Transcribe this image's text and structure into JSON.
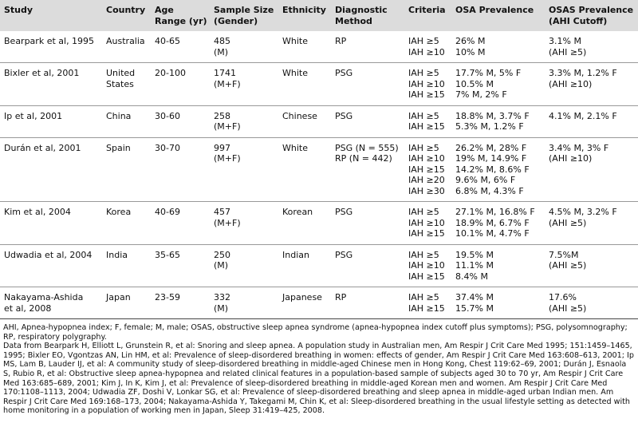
{
  "table": {
    "header": [
      [
        "Study"
      ],
      [
        "Country"
      ],
      [
        "Age",
        "Range (yr)"
      ],
      [
        "Sample Size",
        "(Gender)"
      ],
      [
        "Ethnicity"
      ],
      [
        "Diagnostic",
        "Method"
      ],
      [
        "Criteria"
      ],
      [
        "OSA Prevalence"
      ],
      [
        "OSAS Prevalence",
        "(AHI Cutoff)"
      ]
    ],
    "rows": [
      [
        [
          "Bearpark et al, 1995"
        ],
        [
          "Australia"
        ],
        [
          "40-65"
        ],
        [
          "485",
          "(M)"
        ],
        [
          "White"
        ],
        [
          "RP"
        ],
        [
          "IAH ≥5",
          "IAH ≥10"
        ],
        [
          "26% M",
          "10% M"
        ],
        [
          "3.1% M",
          "(AHI ≥5)"
        ]
      ],
      [
        [
          "Bixler et al, 2001"
        ],
        [
          "United",
          "States"
        ],
        [
          "20-100"
        ],
        [
          "1741",
          "(M+F)"
        ],
        [
          "White"
        ],
        [
          "PSG"
        ],
        [
          "IAH ≥5",
          "IAH ≥10",
          "IAH ≥15"
        ],
        [
          "17.7% M, 5% F",
          "10.5% M",
          "7% M, 2% F"
        ],
        [
          "3.3% M, 1.2% F",
          "(AHI ≥10)"
        ]
      ],
      [
        [
          "Ip et al, 2001"
        ],
        [
          "China"
        ],
        [
          "30-60"
        ],
        [
          "258",
          "(M+F)"
        ],
        [
          "Chinese"
        ],
        [
          "PSG"
        ],
        [
          "IAH ≥5",
          "IAH ≥15"
        ],
        [
          "18.8% M, 3.7% F",
          "5.3% M, 1.2% F"
        ],
        [
          "4.1% M, 2.1% F"
        ]
      ],
      [
        [
          "Durán et al, 2001"
        ],
        [
          "Spain"
        ],
        [
          "30-70"
        ],
        [
          "997",
          "(M+F)"
        ],
        [
          "White"
        ],
        [
          "PSG (N = 555)",
          "RP (N = 442)"
        ],
        [
          "IAH ≥5",
          "IAH ≥10",
          "IAH ≥15",
          "IAH ≥20",
          "IAH ≥30"
        ],
        [
          "26.2% M, 28% F",
          "19% M, 14.9% F",
          "14.2% M, 8.6% F",
          "9.6% M, 6% F",
          "6.8% M, 4.3% F"
        ],
        [
          "3.4% M, 3% F",
          "(AHI ≥10)"
        ]
      ],
      [
        [
          "Kim et al, 2004"
        ],
        [
          "Korea"
        ],
        [
          "40-69"
        ],
        [
          "457",
          "(M+F)"
        ],
        [
          "Korean"
        ],
        [
          "PSG"
        ],
        [
          "IAH ≥5",
          "IAH ≥10",
          "IAH ≥15"
        ],
        [
          "27.1% M, 16.8% F",
          "18.9% M, 6.7% F",
          "10.1% M, 4.7% F"
        ],
        [
          "4.5% M, 3.2% F",
          "(AHI ≥5)"
        ]
      ],
      [
        [
          "Udwadia et al, 2004"
        ],
        [
          "India"
        ],
        [
          "35-65"
        ],
        [
          "250",
          "(M)"
        ],
        [
          "Indian"
        ],
        [
          "PSG"
        ],
        [
          "IAH ≥5",
          "IAH ≥10",
          "IAH ≥15"
        ],
        [
          "19.5% M",
          "11.1% M",
          "8.4% M"
        ],
        [
          "7.5%M",
          "(AHI ≥5)"
        ]
      ],
      [
        [
          "Nakayama-Ashida",
          "et al, 2008"
        ],
        [
          "Japan"
        ],
        [
          "23-59"
        ],
        [
          "332",
          "(M)"
        ],
        [
          "Japanese"
        ],
        [
          "RP"
        ],
        [
          "IAH ≥5",
          "IAH ≥15"
        ],
        [
          "37.4% M",
          "15.7% M"
        ],
        [
          "17.6%",
          "(AHI ≥5)"
        ]
      ]
    ]
  },
  "footnotes": {
    "abbreviations": "AHI, Apnea-hypopnea index; F, female; M, male; OSAS, obstructive sleep apnea syndrome (apnea-hypopnea index cutoff plus symptoms); PSG, polysomnography; RP, respiratory polygraphy.",
    "sources": "Data from Bearpark H, Elliott L, Grunstein R, et al: Snoring and sleep apnea. A population study in Australian men, Am Respir J Crit Care Med 1995; 151:1459–1465, 1995; Bixler EO, Vgontzas AN, Lin HM, et al: Prevalence of sleep-disordered breathing in women: effects of gender, Am Respir J Crit Care Med 163:608–613, 2001; Ip MS, Lam B, Lauder IJ, et al: A community study of sleep-disordered breathing in middle-aged Chinese men in Hong Kong, Chest 119:62–69, 2001; Durán J, Esnaola S, Rubio R, et al: Obstructive sleep apnea-hypopnea and related clinical features in a population-based sample of subjects aged 30 to 70 yr, Am Respir J Crit Care Med 163:685–689, 2001; Kim J, In K, Kim J, et al: Prevalence of sleep-disordered breathing in middle-aged Korean men and women. Am Respir J Crit Care Med 170:1108–1113, 2004; Udwadia ZF, Doshi V, Lonkar SG, et al: Prevalence of sleep-disordered breathing and sleep apnea in middle-aged urban Indian men. Am Respir J Crit Care Med 169:168–173, 2004; Nakayama-Ashida Y, Takegami M, Chin K, et al: Sleep-disordered breathing in the usual lifestyle setting as detected with home monitoring in a population of working men in Japan, Sleep 31:419–425, 2008."
  }
}
